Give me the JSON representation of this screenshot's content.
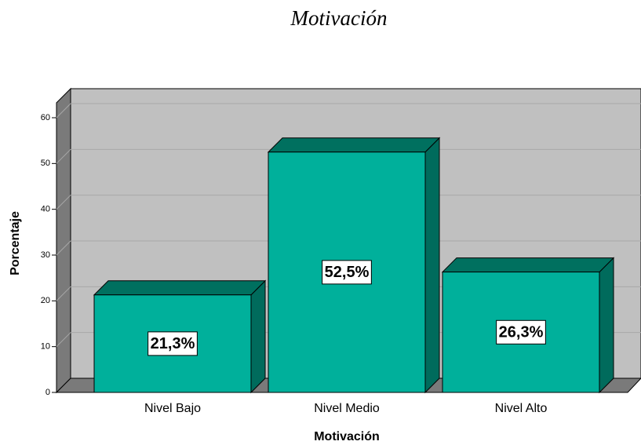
{
  "chart_data": {
    "type": "bar3d",
    "title": "Motivación",
    "categories": [
      "Nivel Bajo",
      "Nivel Medio",
      "Nivel Alto"
    ],
    "values": [
      21.3,
      52.5,
      26.3
    ],
    "value_labels": [
      "21,3%",
      "52,5%",
      "26,3%"
    ],
    "color": "#00b09b",
    "ylabel": "Porcentaje",
    "xlabel": "Motivación",
    "ylim": [
      0,
      63
    ],
    "yticks": [
      0,
      10,
      20,
      30,
      40,
      50,
      60
    ],
    "grid": true
  }
}
